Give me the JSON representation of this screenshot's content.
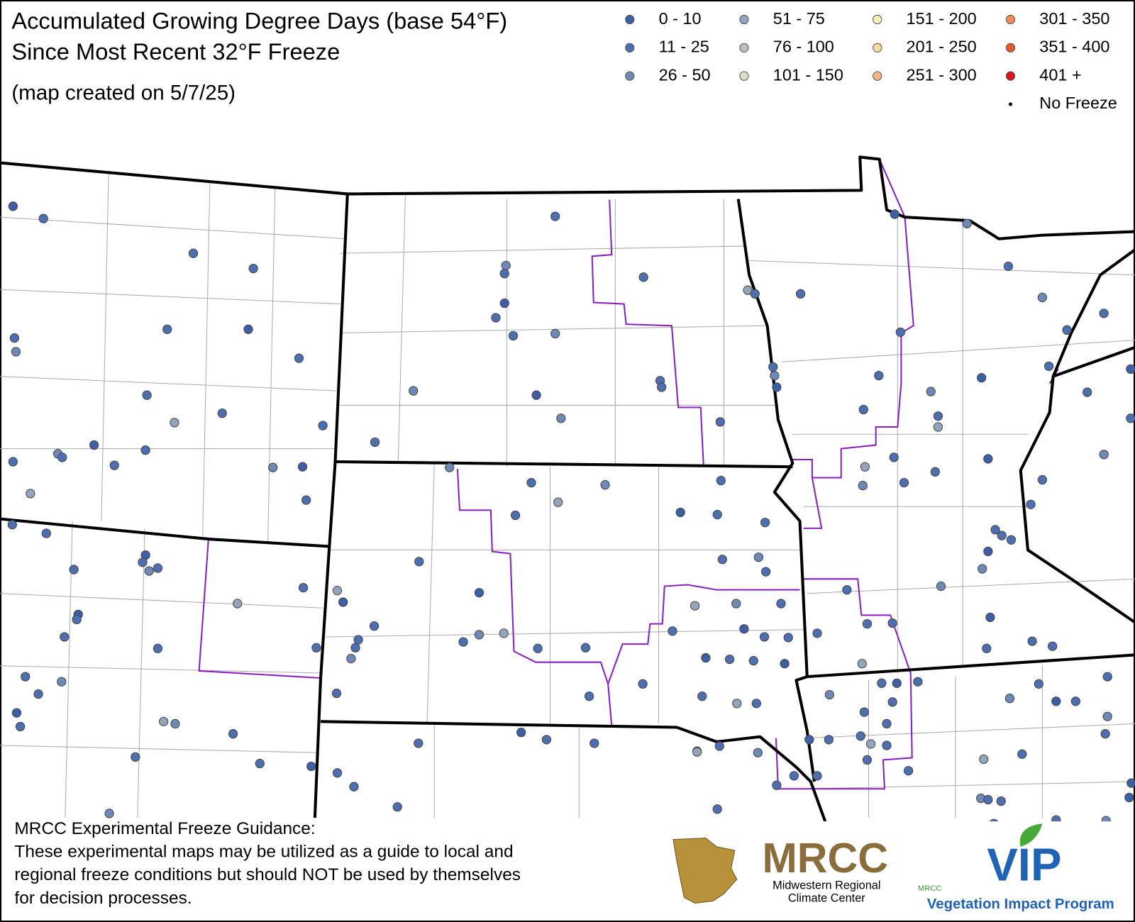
{
  "header": {
    "title_lines": [
      "Accumulated Growing Degree Days (base 54°F)",
      "Since Most Recent 32°F Freeze"
    ],
    "subtitle": "(map created on 5/7/25)"
  },
  "legend": {
    "entries": [
      {
        "label": "0 - 10",
        "color": "#3c5fa6"
      },
      {
        "label": "11 - 25",
        "color": "#4d6fb0"
      },
      {
        "label": "26 - 50",
        "color": "#6f89b6"
      },
      {
        "label": "51 - 75",
        "color": "#93a5bd"
      },
      {
        "label": "76 - 100",
        "color": "#b6c3c3"
      },
      {
        "label": "101 - 150",
        "color": "#d9dec6"
      },
      {
        "label": "151 - 200",
        "color": "#f4f0bd"
      },
      {
        "label": "201 - 250",
        "color": "#f7d99e"
      },
      {
        "label": "251 - 300",
        "color": "#f6b585"
      },
      {
        "label": "301 - 350",
        "color": "#ef8a5b"
      },
      {
        "label": "351 - 400",
        "color": "#e45a2c"
      },
      {
        "label": "401 +",
        "color": "#d7191c"
      },
      {
        "label": "No Freeze",
        "color": "#000000"
      }
    ]
  },
  "footer": {
    "heading": "MRCC Experimental Freeze Guidance:",
    "lines": [
      "These experimental maps may be utilized as a guide to local and",
      "regional freeze conditions but should NOT be used by themselves",
      "for decision processes."
    ]
  },
  "logos": {
    "mrcc": "MRCC",
    "mrcc_sub": [
      "Midwestern Regional",
      "Climate Center"
    ],
    "vip_small": "MRCC",
    "vip": "VIP",
    "vip_sub": "Vegetation Impact Program"
  }
}
